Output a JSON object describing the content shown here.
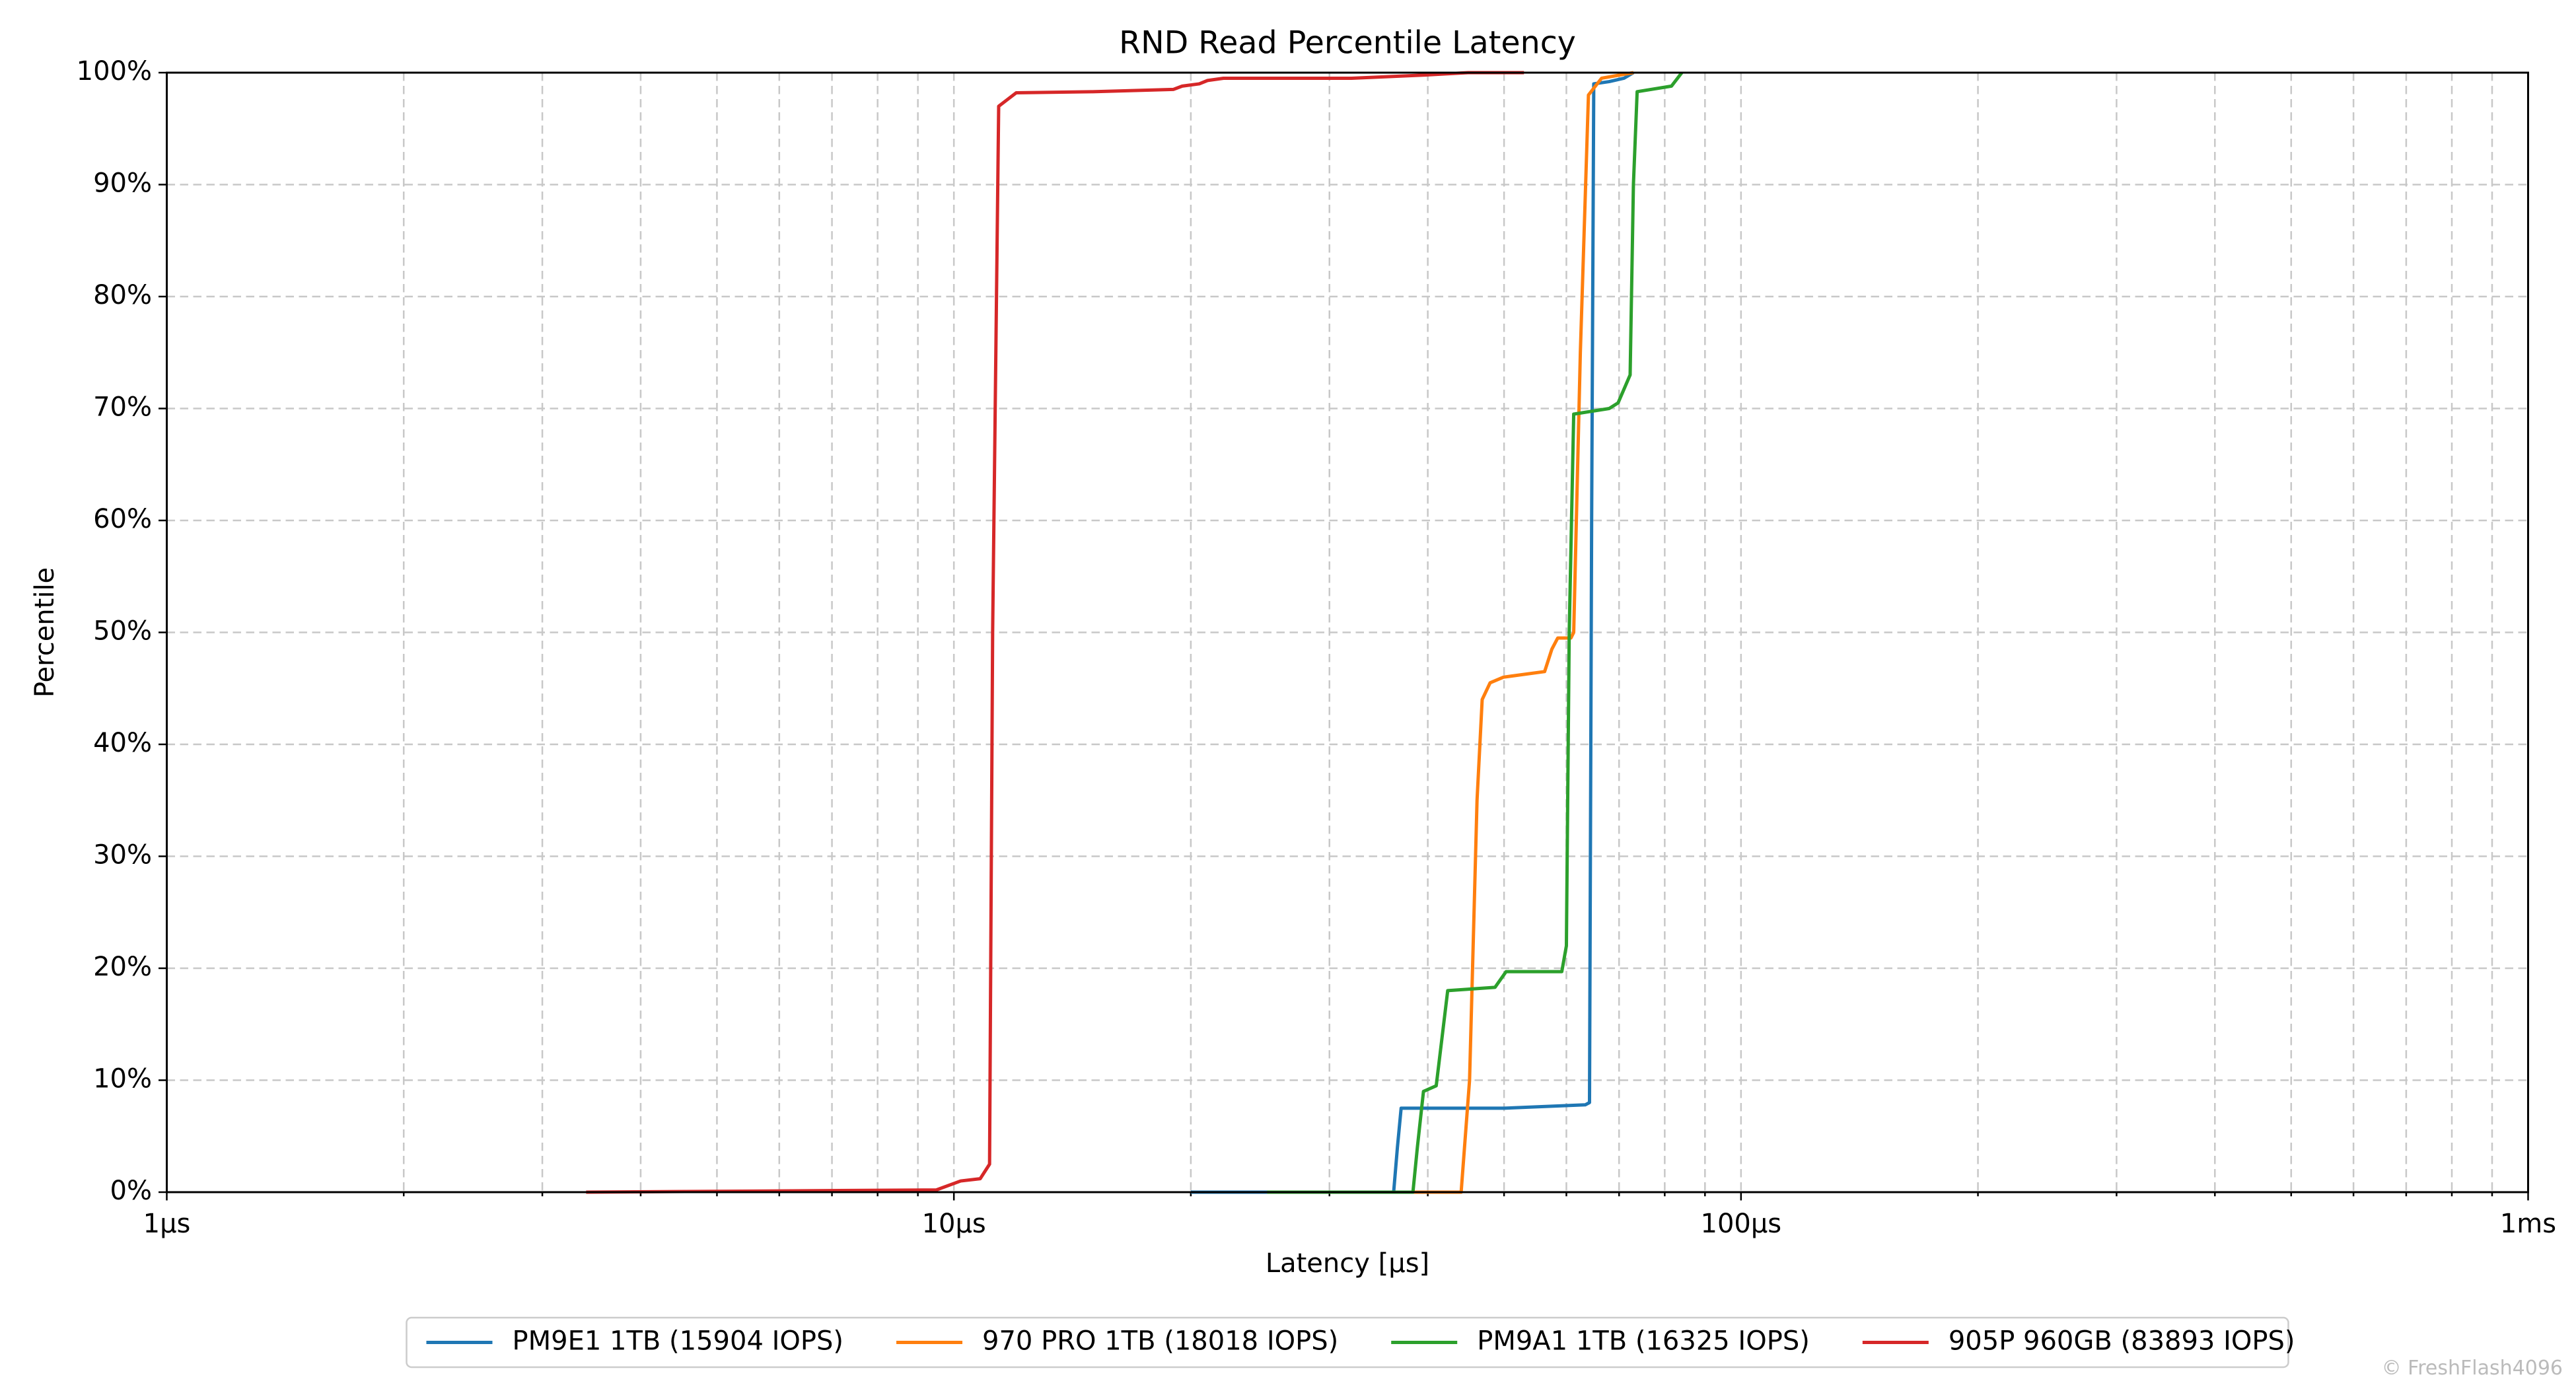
{
  "chart_data": {
    "type": "line",
    "title": "RND Read Percentile Latency",
    "x_label": "Latency [µs]",
    "y_label": "Percentile",
    "log_x": true,
    "grid": true,
    "legend": "bottom",
    "watermark": "© FreshFlash4096",
    "xlim": [
      1,
      1000
    ],
    "xticks": [
      {
        "value": 1,
        "label": "1µs"
      },
      {
        "value": 10,
        "label": "10µs"
      },
      {
        "value": 100,
        "label": "100µs"
      },
      {
        "value": 1000,
        "label": "1ms"
      }
    ],
    "ylim": [
      0,
      100
    ],
    "yticks": [
      {
        "value": 0,
        "label": "0%"
      },
      {
        "value": 10,
        "label": "10%"
      },
      {
        "value": 20,
        "label": "20%"
      },
      {
        "value": 30,
        "label": "30%"
      },
      {
        "value": 40,
        "label": "40%"
      },
      {
        "value": 50,
        "label": "50%"
      },
      {
        "value": 60,
        "label": "60%"
      },
      {
        "value": 70,
        "label": "70%"
      },
      {
        "value": 80,
        "label": "80%"
      },
      {
        "value": 90,
        "label": "90%"
      },
      {
        "value": 100,
        "label": "100%"
      }
    ],
    "series": [
      {
        "name": "PM9E1 1TB (15904 IOPS)",
        "color": "#1f77b4",
        "x": [
          20,
          36.2,
          36.6,
          37,
          50,
          63.4,
          64.2,
          64.6,
          65,
          68,
          71,
          73
        ],
        "values": [
          0,
          0,
          4,
          7.5,
          7.5,
          7.8,
          8,
          60,
          99,
          99.2,
          99.5,
          100
        ]
      },
      {
        "name": "970 PRO 1TB (18018 IOPS)",
        "color": "#ff7f0e",
        "x": [
          30,
          44.1,
          45.2,
          46.2,
          46.9,
          48,
          49.9,
          56.3,
          57.5,
          58.5,
          60.8,
          61.3,
          62.5,
          64,
          66.5,
          73
        ],
        "values": [
          0,
          0,
          10,
          35,
          44,
          45.5,
          46,
          46.5,
          48.5,
          49.5,
          49.5,
          50,
          75,
          98,
          99.5,
          100
        ]
      },
      {
        "name": "PM9A1 1TB (16325 IOPS)",
        "color": "#2ca02c",
        "x": [
          25,
          38.3,
          38.8,
          39.5,
          41,
          42.4,
          48.7,
          50.3,
          59.2,
          60,
          60.5,
          61.3,
          68,
          69.8,
          72.3,
          73,
          73.8,
          81.6,
          84.1
        ],
        "values": [
          0,
          0,
          4,
          9,
          9.5,
          18,
          18.3,
          19.7,
          19.7,
          22,
          50,
          69.5,
          70,
          70.5,
          73,
          90,
          98.3,
          98.8,
          100
        ]
      },
      {
        "name": "905P 960GB (83893 IOPS)",
        "color": "#d62728",
        "x": [
          3.41,
          9.5,
          10.2,
          10.8,
          11.1,
          11.2,
          11.4,
          12,
          15,
          19,
          19.5,
          20.5,
          21,
          22,
          32,
          40,
          45,
          53
        ],
        "values": [
          0,
          0.2,
          1,
          1.2,
          2.5,
          50,
          97,
          98.2,
          98.3,
          98.5,
          98.8,
          99,
          99.3,
          99.5,
          99.5,
          99.8,
          100,
          100
        ]
      }
    ]
  }
}
